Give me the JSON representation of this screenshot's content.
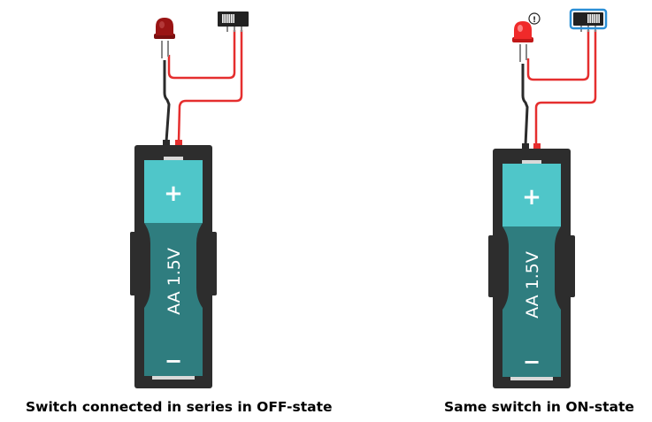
{
  "colors": {
    "wire_red": "#e52e2e",
    "wire_black": "#2b2b2b",
    "holder": "#2d2d2d",
    "battery_top": "#4fc6c9",
    "battery_body": "#2f7d7f",
    "led_off": "#9a1414",
    "led_on": "#f02a2a",
    "switch_off": "#222222",
    "switch_on_highlight": "#2b8fd6"
  },
  "circuits": [
    {
      "caption": "Switch connected in series in OFF-state",
      "battery": {
        "plus": "+",
        "label": "AA 1.5V",
        "minus": "−"
      },
      "switch_state": "off",
      "led_state": "off",
      "warning": ""
    },
    {
      "caption": "Same switch in ON-state",
      "battery": {
        "plus": "+",
        "label": "AA 1.5V",
        "minus": "−"
      },
      "switch_state": "on",
      "led_state": "on",
      "warning": "!"
    }
  ]
}
